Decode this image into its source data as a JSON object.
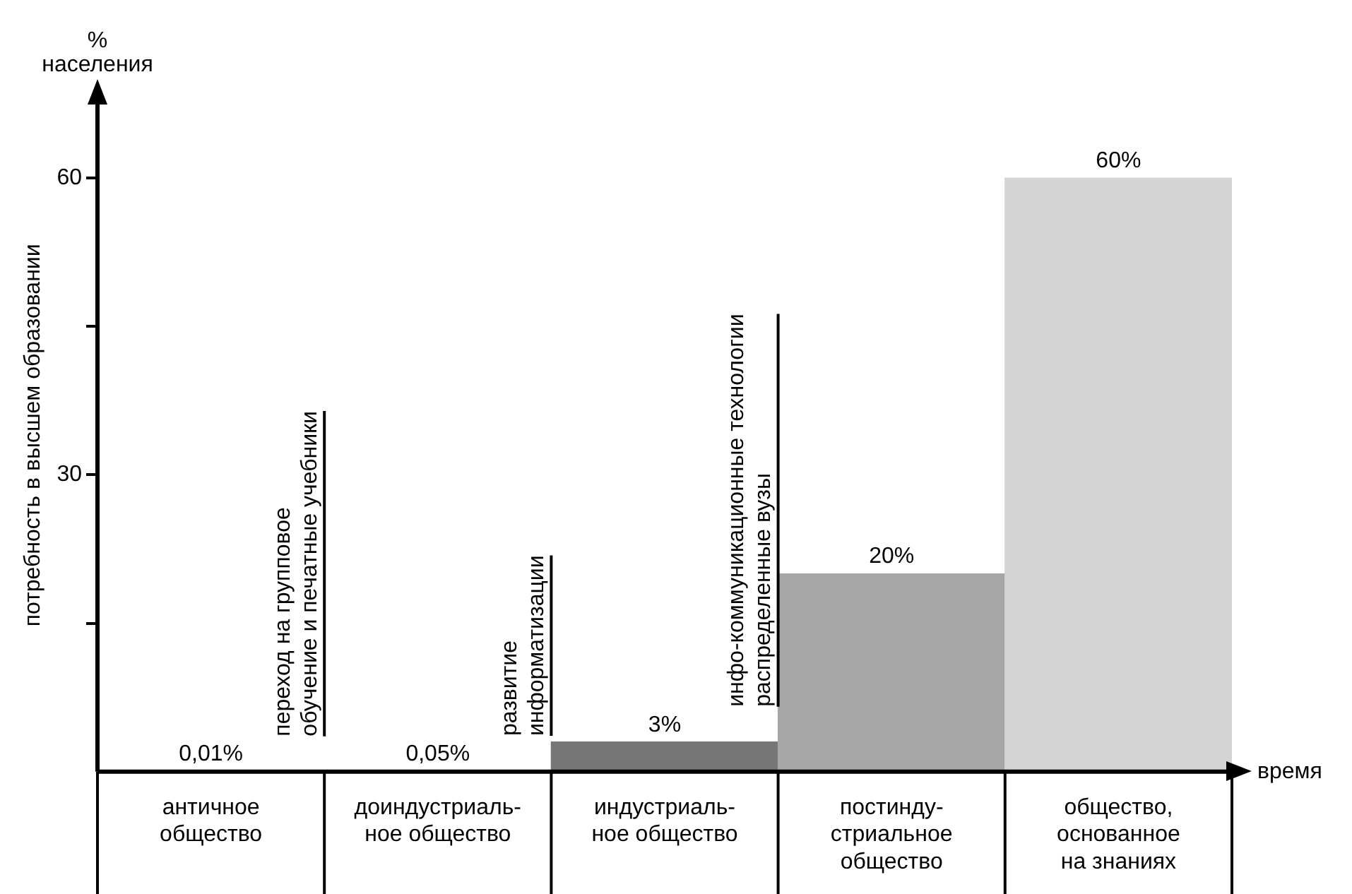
{
  "chart_data": {
    "type": "bar",
    "ylabel": "потребность в высшем образовании",
    "xlabel": "время",
    "categories": [
      "античное\nобщество",
      "доиндустриаль-\nное общество",
      "индустриаль-\nное общество",
      "постинду-\nстриальное\nобщество",
      "общество,\nоснованное\nна знаниях"
    ],
    "values": [
      0.01,
      0.05,
      3,
      20,
      60
    ],
    "colors": [
      "#1e1e1e",
      "#5a5a5a",
      "#767676",
      "#a6a6a6",
      "#d4d4d4"
    ],
    "value_labels": [
      "0,01%",
      "0,05%",
      "3%",
      "20%",
      "60%"
    ],
    "ylim": [
      0,
      68
    ],
    "yticks": [
      {
        "value": 15,
        "label": null
      },
      30,
      {
        "value": 45,
        "label": null
      },
      60
    ],
    "grid": false,
    "legend": false,
    "annotations": [
      "%\nнаселения",
      "переход на групповое\nобучение и печатные учебники",
      "развитие\nинформатизации",
      "инфо-коммуникационные технологии\nраспределенные вузы"
    ]
  }
}
